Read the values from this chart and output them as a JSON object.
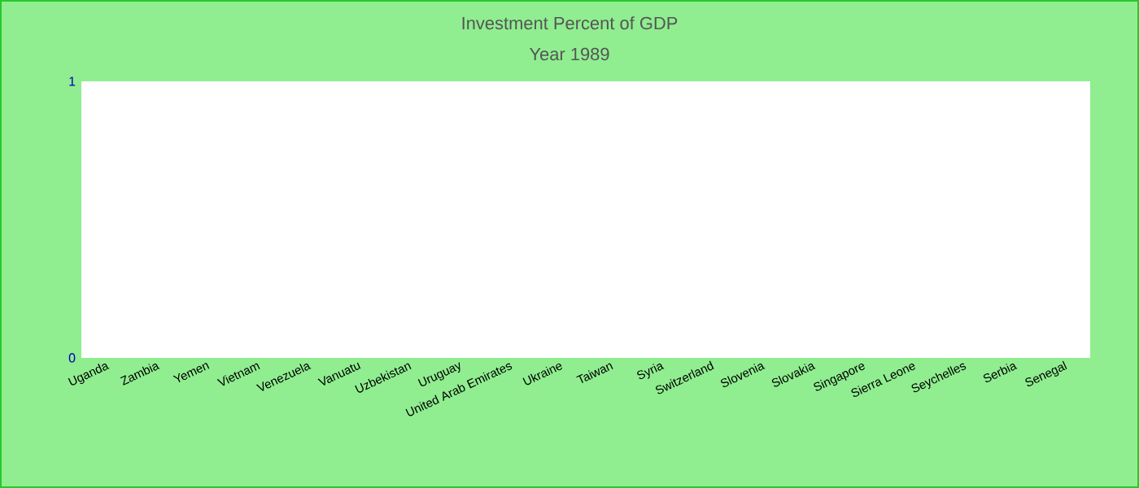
{
  "chart_data": {
    "type": "bar",
    "title": "Investment  Percent of GDP",
    "subtitle": "Year 1989",
    "categories": [
      "Uganda",
      "Zambia",
      "Yemen",
      "Vietnam",
      "Venezuela",
      "Vanuatu",
      "Uzbekistan",
      "Uruguay",
      "United Arab Emirates",
      "Ukraine",
      "Taiwan",
      "Syria",
      "Switzerland",
      "Slovenia",
      "Slovakia",
      "Singapore",
      "Sierra Leone",
      "Seychelles",
      "Serbia",
      "Senegal"
    ],
    "values": [
      null,
      null,
      null,
      null,
      null,
      null,
      null,
      null,
      null,
      null,
      null,
      null,
      null,
      null,
      null,
      null,
      null,
      null,
      null,
      null
    ],
    "ylim": [
      0,
      1
    ],
    "yticks": [
      0,
      1
    ]
  }
}
